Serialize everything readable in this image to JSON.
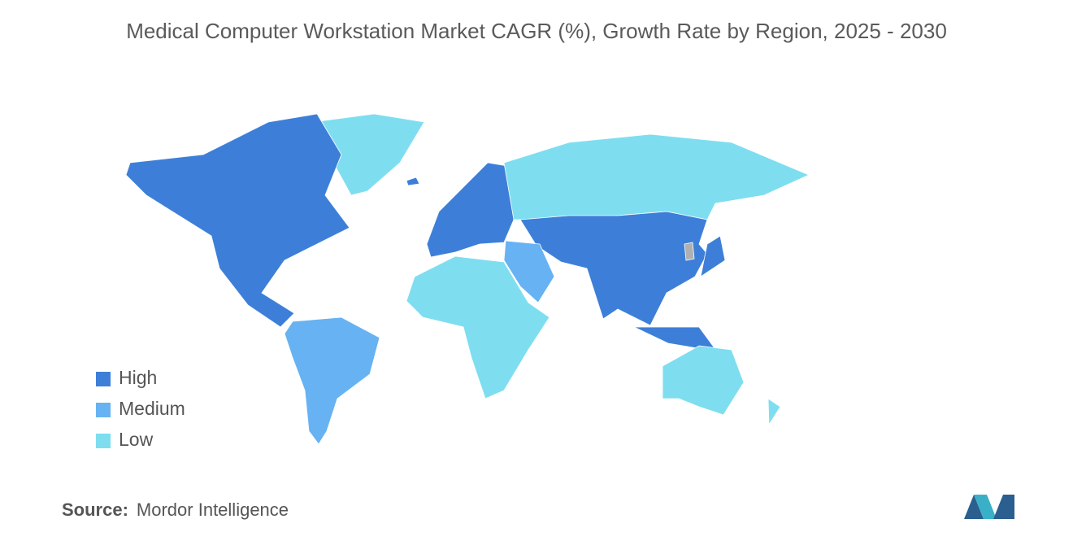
{
  "title": "Medical Computer Workstation Market CAGR (%), Growth Rate by Region, 2025 - 2030",
  "legend": [
    {
      "label": "High",
      "color": "#3d7fd8"
    },
    {
      "label": "Medium",
      "color": "#67b2f2"
    },
    {
      "label": "Low",
      "color": "#7edef0"
    }
  ],
  "source": {
    "label": "Source:",
    "text": "Mordor Intelligence"
  }
}
